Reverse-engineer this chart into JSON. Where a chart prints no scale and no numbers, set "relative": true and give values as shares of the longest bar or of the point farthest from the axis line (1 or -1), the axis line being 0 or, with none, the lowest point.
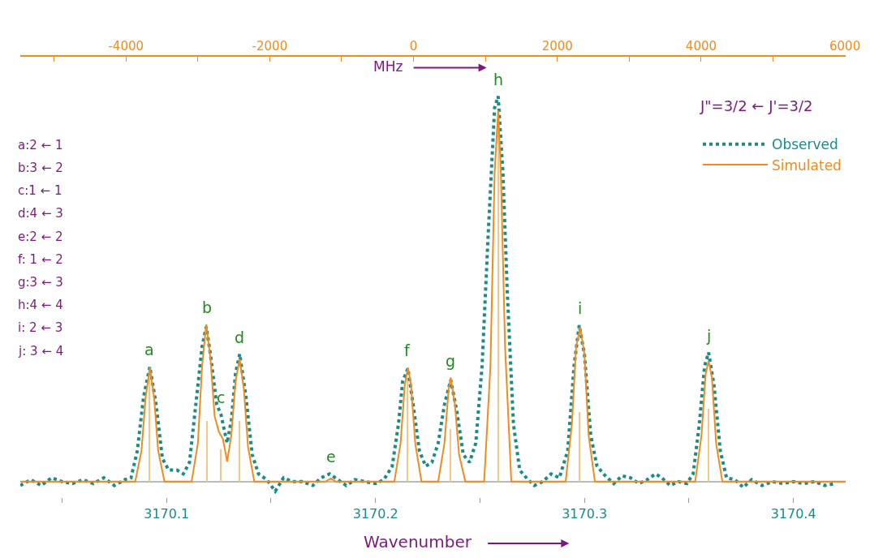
{
  "chart_data": {
    "type": "line",
    "relative": true,
    "xlabel": "Wavenumber",
    "x2label": "MHz",
    "legend_title": "J\"=3/2 ← J'=3/2",
    "legend": "top right",
    "xlim": [
      3170.03,
      3170.425
    ],
    "xticks": [
      3170.1,
      3170.2,
      3170.3,
      3170.4
    ],
    "x2lim": [
      -5470,
      6010
    ],
    "x2ticks": [
      -4000,
      -2000,
      0,
      2000,
      4000,
      6000
    ],
    "series": [
      {
        "type": "bar",
        "color": "#f5c68a",
        "x": [
          3170.0919,
          3170.1194,
          3170.1259,
          3170.1348,
          3170.1786,
          3170.2154,
          3170.2359,
          3170.2587,
          3170.2978,
          3170.3594
        ],
        "values": [
          0.27,
          0.158,
          0.084,
          0.158,
          0.008,
          0.27,
          0.136,
          0.96,
          0.18,
          0.19
        ]
      },
      {
        "name": "Observed",
        "color": "#1a8a8a",
        "line_style": "dotted",
        "x": [
          3170.03,
          3170.035,
          3170.04,
          3170.045,
          3170.05,
          3170.055,
          3170.06,
          3170.065,
          3170.07,
          3170.075,
          3170.08,
          3170.083,
          3170.086,
          3170.089,
          3170.092,
          3170.095,
          3170.098,
          3170.101,
          3170.105,
          3170.108,
          3170.111,
          3170.114,
          3170.117,
          3170.119,
          3170.121,
          3170.124,
          3170.126,
          3170.129,
          3170.131,
          3170.133,
          3170.135,
          3170.138,
          3170.141,
          3170.144,
          3170.148,
          3170.152,
          3170.156,
          3170.16,
          3170.165,
          3170.17,
          3170.174,
          3170.178,
          3170.182,
          3170.186,
          3170.19,
          3170.195,
          3170.2,
          3170.204,
          3170.208,
          3170.211,
          3170.213,
          3170.2155,
          3170.218,
          3170.221,
          3170.224,
          3170.227,
          3170.23,
          3170.233,
          3170.236,
          3170.239,
          3170.242,
          3170.245,
          3170.248,
          3170.251,
          3170.254,
          3170.257,
          3170.2587,
          3170.261,
          3170.263,
          3170.266,
          3170.269,
          3170.273,
          3170.276,
          3170.28,
          3170.284,
          3170.288,
          3170.292,
          3170.295,
          3170.2975,
          3170.3,
          3170.303,
          3170.306,
          3170.31,
          3170.314,
          3170.318,
          3170.322,
          3170.326,
          3170.33,
          3170.334,
          3170.337,
          3170.341,
          3170.345,
          3170.349,
          3170.352,
          3170.355,
          3170.3575,
          3170.3594,
          3170.362,
          3170.365,
          3170.368,
          3170.372,
          3170.376,
          3170.38,
          3170.385,
          3170.39,
          3170.395,
          3170.4,
          3170.405,
          3170.41,
          3170.415,
          3170.42
        ],
        "values": [
          -0.01,
          0.005,
          -0.01,
          0.01,
          0,
          -0.005,
          0.005,
          -0.005,
          0.01,
          -0.01,
          0.005,
          0.01,
          0.08,
          0.22,
          0.298,
          0.2,
          0.06,
          0.03,
          0.03,
          0.02,
          0.05,
          0.2,
          0.35,
          0.402,
          0.33,
          0.2,
          0.175,
          0.1,
          0.16,
          0.28,
          0.331,
          0.22,
          0.07,
          0.02,
          0.005,
          -0.025,
          0.01,
          0,
          0,
          -0.01,
          0.01,
          0.02,
          0.005,
          -0.01,
          0.005,
          0,
          -0.005,
          0.005,
          0.04,
          0.15,
          0.26,
          0.294,
          0.2,
          0.08,
          0.04,
          0.05,
          0.1,
          0.2,
          0.264,
          0.18,
          0.07,
          0.05,
          0.1,
          0.3,
          0.65,
          0.97,
          1.0,
          0.8,
          0.5,
          0.15,
          0.03,
          0.005,
          -0.01,
          0,
          0.02,
          0.01,
          0.08,
          0.3,
          0.406,
          0.33,
          0.12,
          0.04,
          0.015,
          -0.005,
          0.015,
          0.01,
          -0.005,
          0.005,
          0.02,
          0.01,
          -0.01,
          0,
          -0.005,
          0.02,
          0.15,
          0.3,
          0.335,
          0.25,
          0.08,
          0.01,
          0.005,
          -0.015,
          0.005,
          -0.01,
          0,
          -0.005,
          0,
          -0.005,
          0,
          -0.01,
          -0.005
        ]
      },
      {
        "name": "Simulated",
        "color": "#f08c1e",
        "line_style": "solid",
        "x": [
          3170.03,
          3170.085,
          3170.088,
          3170.09,
          3170.092,
          3170.094,
          3170.096,
          3170.099,
          3170.112,
          3170.115,
          3170.117,
          3170.119,
          3170.121,
          3170.123,
          3170.125,
          3170.127,
          3170.129,
          3170.131,
          3170.133,
          3170.135,
          3170.137,
          3170.139,
          3170.142,
          3170.176,
          3170.1786,
          3170.181,
          3170.209,
          3170.212,
          3170.214,
          3170.2155,
          3170.217,
          3170.219,
          3170.222,
          3170.23,
          3170.233,
          3170.235,
          3170.236,
          3170.238,
          3170.24,
          3170.243,
          3170.252,
          3170.255,
          3170.257,
          3170.2587,
          3170.26,
          3170.262,
          3170.265,
          3170.291,
          3170.294,
          3170.296,
          3170.298,
          3170.3,
          3170.302,
          3170.305,
          3170.353,
          3170.356,
          3170.358,
          3170.3594,
          3170.361,
          3170.363,
          3170.366,
          3170.425
        ],
        "values": [
          0,
          0,
          0.08,
          0.22,
          0.296,
          0.22,
          0.08,
          0,
          0,
          0.1,
          0.3,
          0.408,
          0.32,
          0.17,
          0.13,
          0.11,
          0.052,
          0.12,
          0.26,
          0.318,
          0.24,
          0.09,
          0,
          0,
          0.008,
          0,
          0,
          0.1,
          0.25,
          0.296,
          0.25,
          0.1,
          0,
          0,
          0.1,
          0.24,
          0.27,
          0.2,
          0.07,
          0,
          0,
          0.3,
          0.8,
          0.963,
          0.8,
          0.35,
          0,
          0,
          0.15,
          0.35,
          0.4,
          0.33,
          0.12,
          0,
          0,
          0.12,
          0.28,
          0.313,
          0.27,
          0.1,
          0,
          0
        ]
      }
    ],
    "annotations": [
      "a:2 ← 1",
      "b:3 ← 2",
      "c:1 ← 1",
      "d:4 ← 3",
      "e:2 ← 2",
      "f: 1 ← 2",
      "g:3 ← 3",
      "h:4 ← 4",
      "i: 2 ← 3",
      "j: 3 ← 4",
      {
        "text": "a",
        "x": 3170.0919,
        "y": 0.298
      },
      {
        "text": "b",
        "x": 3170.1194,
        "y": 0.408
      },
      {
        "text": "c",
        "x": 3170.1259,
        "y": 0.175
      },
      {
        "text": "d",
        "x": 3170.1348,
        "y": 0.331
      },
      {
        "text": "e",
        "x": 3170.1786,
        "y": 0.02
      },
      {
        "text": "f",
        "x": 3170.2154,
        "y": 0.296
      },
      {
        "text": "g",
        "x": 3170.2359,
        "y": 0.27
      },
      {
        "text": "h",
        "x": 3170.2587,
        "y": 1.0
      },
      {
        "text": "i",
        "x": 3170.2978,
        "y": 0.406
      },
      {
        "text": "j",
        "x": 3170.3594,
        "y": 0.335
      }
    ]
  }
}
